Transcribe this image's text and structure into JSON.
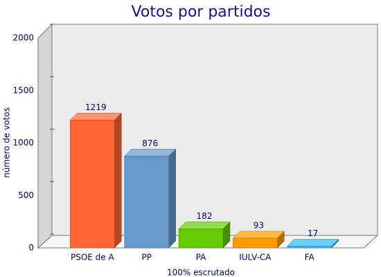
{
  "chart_data": {
    "type": "bar3d",
    "title": "Votos por partidos",
    "y_label": "número de votos",
    "x_label": "100% escrutado",
    "categories": [
      "PSOE de A",
      "PP",
      "PA",
      "IULV-CA",
      "FA"
    ],
    "values": [
      1219,
      876,
      182,
      93,
      17
    ],
    "colors": [
      "#ff6633",
      "#6699cc",
      "#66cc00",
      "#ff9900",
      "#33bbee"
    ],
    "ylim": [
      0,
      2000
    ],
    "yticks": [
      0,
      500,
      1000,
      1500,
      2000
    ],
    "grid": false
  }
}
